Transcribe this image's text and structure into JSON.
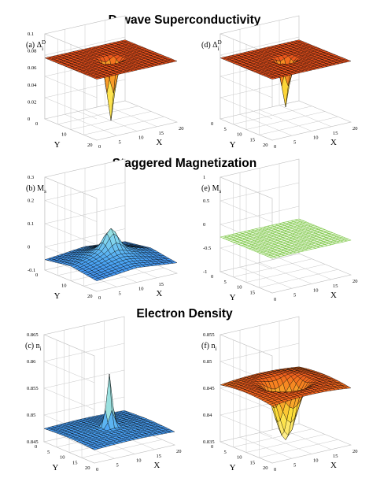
{
  "section_titles": [
    "D-wave Superconductivity",
    "Staggered Magnetization",
    "Electron Density"
  ],
  "colors": {
    "red_surface": "#e0281a",
    "red_highlight": "#f07a22",
    "blue_surface": "#3a78ea",
    "green_mesh": "#7ec84a",
    "green_fill": "#eef7e4",
    "grid_line": "#000000"
  },
  "chart_data": [
    {
      "id": "a",
      "type": "surface3d",
      "panel_label": "(a) Δ",
      "panel_sub": "i",
      "panel_sup": "D",
      "xlabel": "X",
      "ylabel": "Y",
      "x_ticks": [
        "0",
        "5",
        "10",
        "15",
        "20"
      ],
      "y_ticks": [
        "0",
        "10",
        "20"
      ],
      "z_ticks": [
        "0",
        "0.02",
        "0.04",
        "0.06",
        "0.08",
        "0.1"
      ],
      "zlim": [
        0,
        0.1
      ],
      "surface": {
        "base": 0.09,
        "feature": "sharp dip",
        "center": [
          10,
          10
        ],
        "min_value": 0.0,
        "colormap": "red-dominant (hot)"
      }
    },
    {
      "id": "d",
      "type": "surface3d",
      "panel_label": "(d) Δ",
      "panel_sub": "i",
      "panel_sup": "D",
      "xlabel": "X",
      "ylabel": "Y",
      "x_ticks": [
        "0",
        "5",
        "10",
        "15",
        "20"
      ],
      "y_ticks": [
        "0",
        "5",
        "10",
        "15",
        "20"
      ],
      "z_ticks": [],
      "zlim": [
        0,
        0.1
      ],
      "surface": {
        "base": 0.09,
        "feature": "sharp dip",
        "center": [
          10,
          10
        ],
        "min_value": 0.02,
        "colormap": "red-dominant (hot)"
      }
    },
    {
      "id": "b",
      "type": "surface3d",
      "panel_label": "(b) M",
      "panel_sub": "s",
      "panel_sup": "",
      "xlabel": "X",
      "ylabel": "Y",
      "x_ticks": [
        "0",
        "5",
        "10",
        "15"
      ],
      "y_ticks": [
        "0",
        "10",
        "20"
      ],
      "z_ticks": [
        "-0.1",
        "0",
        "0.1",
        "0.2",
        "0.3"
      ],
      "zlim": [
        -0.1,
        0.3
      ],
      "surface": {
        "base": 0.0,
        "feature": "broad bump with peak",
        "center": [
          10,
          10
        ],
        "peak_value": 0.15,
        "colormap": "blue-dominant (cool)"
      }
    },
    {
      "id": "e",
      "type": "surface3d",
      "panel_label": "(e) M",
      "panel_sub": "s",
      "panel_sup": "",
      "xlabel": "X",
      "ylabel": "Y",
      "x_ticks": [
        "0",
        "5",
        "10",
        "15",
        "20"
      ],
      "y_ticks": [
        "0",
        "5",
        "10",
        "15"
      ],
      "z_ticks": [
        "-1",
        "-0.5",
        "0",
        "0.5",
        "1"
      ],
      "zlim": [
        -1,
        1
      ],
      "surface": {
        "base": 0.0,
        "feature": "flat",
        "colormap": "uniform green mesh"
      }
    },
    {
      "id": "c",
      "type": "surface3d",
      "panel_label": "(c) n",
      "panel_sub": "i",
      "panel_sup": "",
      "xlabel": "X",
      "ylabel": "Y",
      "x_ticks": [
        "0",
        "5",
        "10",
        "15",
        "20"
      ],
      "y_ticks": [
        "0",
        "5",
        "10",
        "15",
        "20"
      ],
      "z_ticks": [
        "0.845",
        "0.85",
        "0.855",
        "0.86",
        "0.865"
      ],
      "zlim": [
        0.845,
        0.865
      ],
      "surface": {
        "base": 0.85,
        "feature": "sharp spike",
        "center": [
          10,
          10
        ],
        "peak_value": 0.865,
        "colormap": "blue-dominant (cool)"
      }
    },
    {
      "id": "f",
      "type": "surface3d",
      "panel_label": "(f) n",
      "panel_sub": "i",
      "panel_sup": "",
      "xlabel": "X",
      "ylabel": "Y",
      "x_ticks": [
        "0",
        "5",
        "10",
        "15",
        "20"
      ],
      "y_ticks": [
        "0",
        "5",
        "10",
        "15",
        "20"
      ],
      "z_ticks": [
        "0.835",
        "0.84",
        "0.845",
        "0.85",
        "0.855"
      ],
      "zlim": [
        0.835,
        0.855
      ],
      "surface": {
        "base": 0.853,
        "feature": "broad dip",
        "center": [
          10,
          10
        ],
        "min_value": 0.836,
        "colormap": "red-dominant (hot)"
      }
    }
  ]
}
